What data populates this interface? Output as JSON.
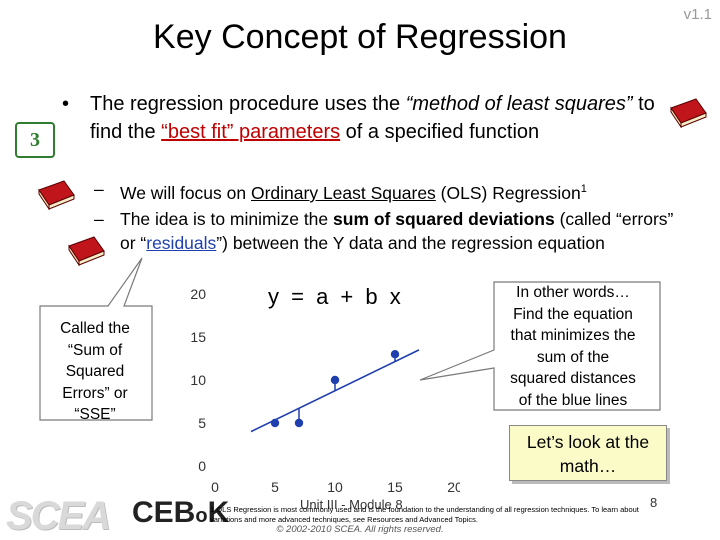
{
  "header": {
    "title": "Key Concept of Regression",
    "version": "v1.1",
    "slide_badge": "3"
  },
  "bullets": {
    "main": {
      "dot": "•",
      "p1": "The regression procedure uses the ",
      "p2_italic": "“method of least squares”",
      "p3": " to find the ",
      "p4_red": "“best fit” parameters",
      "p5": " of a specified function"
    },
    "sub1": {
      "dash": "–",
      "p1": "We will focus on ",
      "p2_underline": "Ordinary Least Squares",
      "p3": " (OLS) Regression",
      "p4_sup": "1"
    },
    "sub2": {
      "dash": "–",
      "p1": "The idea is to minimize the ",
      "p2_bold": "sum of squared deviations",
      "p3": " (called “errors” or “",
      "p4_blue": "residuals",
      "p5": "”) between the Y data and the regression equation"
    }
  },
  "equation": "y = a + b x",
  "callouts": {
    "left": [
      "Called the",
      "“Sum of",
      "Squared",
      "Errors” or",
      "“SSE”"
    ],
    "right": [
      "In other words…",
      "Find the equation",
      "that minimizes the",
      "sum of the",
      "squared distances",
      "of the blue lines"
    ],
    "yellow": [
      "Let’s look at the",
      "math…"
    ]
  },
  "chart_data": {
    "type": "scatter",
    "x": [
      5,
      7,
      10,
      15
    ],
    "y": [
      5,
      5,
      10,
      13
    ],
    "xlim": [
      0,
      20
    ],
    "ylim": [
      0,
      20
    ],
    "x_ticks": [
      "0",
      "5",
      "10",
      "15",
      "20"
    ],
    "y_ticks": [
      "0",
      "5",
      "10",
      "15",
      "20"
    ],
    "fit_line": {
      "x": [
        3,
        17
      ],
      "y": [
        4,
        13.5
      ]
    },
    "grid": false,
    "point_color": "#1f3fae",
    "line_color": "#1f3fae",
    "title": "",
    "xlabel": "",
    "ylabel": ""
  },
  "footer": {
    "module": "Unit III - Module 8",
    "page": "8",
    "footnote": "1 OLS Regression is most commonly used and is the foundation to the understanding of all regression techniques. To learn about variations and more advanced techniques, see Resources and Advanced Topics.",
    "copyright": "© 2002-2010 SCEA. All rights reserved.",
    "logo_scea": "SCEA",
    "logo_cebok_a": "CEB",
    "logo_cebok_b": "o",
    "logo_cebok_c": "K"
  },
  "colors": {
    "accent_red": "#c00000",
    "accent_blue": "#1f3fae",
    "badge_green": "#2f7d2f",
    "book_red": "#c0161b",
    "yellow_box": "#fbfbc8"
  },
  "icons": [
    "book-icon"
  ]
}
